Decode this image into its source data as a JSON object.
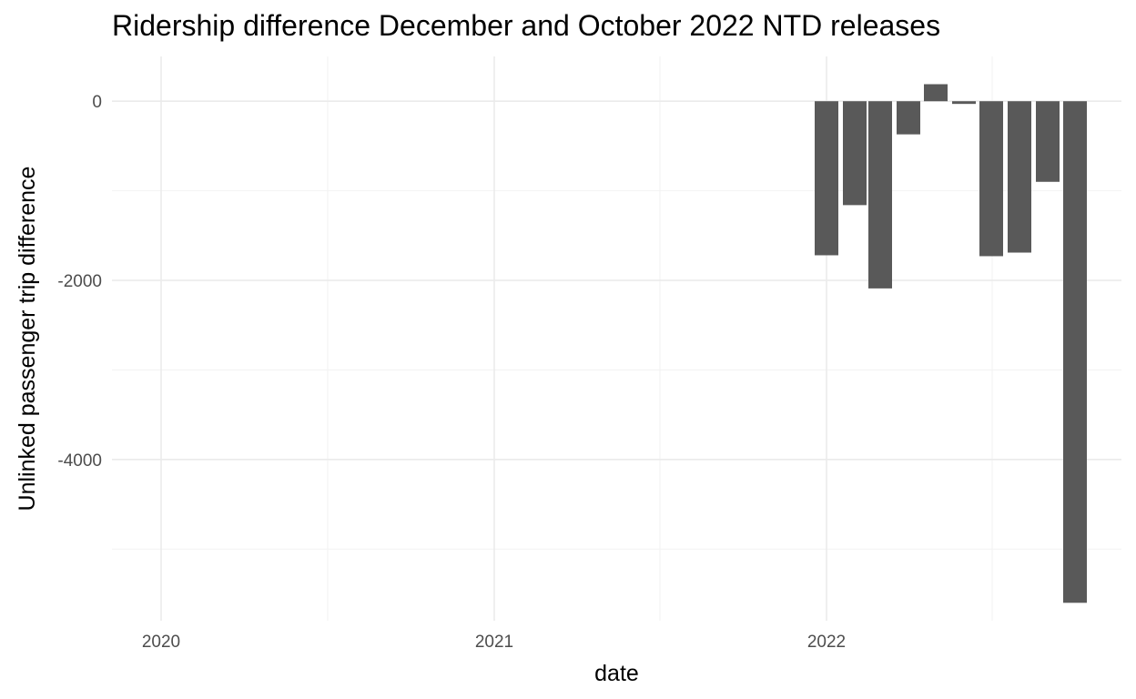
{
  "chart_data": {
    "type": "bar",
    "title": "Ridership difference December and October 2022 NTD releases",
    "xlabel": "date",
    "ylabel": "Unlinked passenger trip difference",
    "x_ticks": [
      {
        "date": "2020-01-01",
        "label": "2020"
      },
      {
        "date": "2021-01-01",
        "label": "2021"
      },
      {
        "date": "2022-01-01",
        "label": "2022"
      }
    ],
    "x_minor_dates": [
      "2020-07-02",
      "2021-07-02",
      "2022-07-02"
    ],
    "xlim": [
      "2019-11-08",
      "2022-11-21"
    ],
    "y_ticks": [
      0,
      -2000,
      -4000
    ],
    "y_minor_ticks": [
      -1000,
      -3000,
      -5000
    ],
    "ylim": [
      -5800,
      500
    ],
    "grid": true,
    "bar_color": "#595959",
    "x": [
      "2022-01-01",
      "2022-02-01",
      "2022-03-01",
      "2022-04-01",
      "2022-05-01",
      "2022-06-01",
      "2022-07-01",
      "2022-08-01",
      "2022-09-01",
      "2022-10-01"
    ],
    "values": [
      -1720,
      -1160,
      -2090,
      -370,
      190,
      -30,
      -1730,
      -1690,
      -900,
      -5600
    ]
  }
}
